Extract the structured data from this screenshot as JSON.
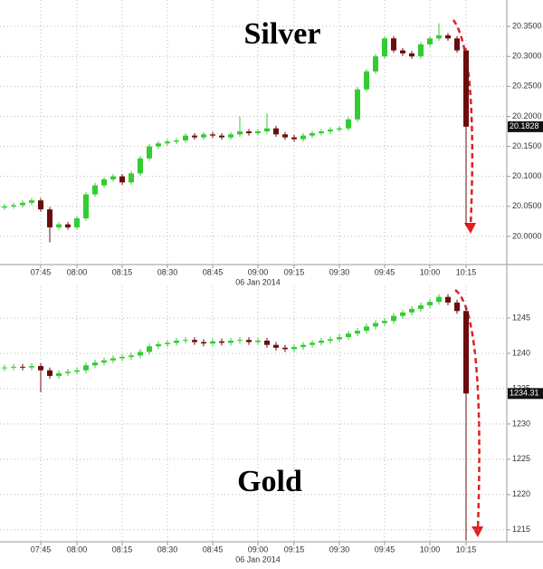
{
  "chart_data": [
    {
      "type": "candlestick",
      "title": "Silver",
      "xlabel": "06 Jan 2014",
      "categories": [
        null,
        null,
        null,
        null,
        "07:45",
        null,
        null,
        null,
        "08:00",
        null,
        null,
        null,
        null,
        "08:15",
        null,
        null,
        null,
        null,
        "08:30",
        null,
        null,
        null,
        null,
        "08:45",
        null,
        null,
        null,
        null,
        "09:00",
        null,
        null,
        null,
        "09:15",
        null,
        null,
        null,
        null,
        "09:30",
        null,
        null,
        null,
        null,
        "09:45",
        null,
        null,
        null,
        null,
        "10:00",
        null,
        null,
        null,
        "10:15"
      ],
      "series": {
        "open": [
          20.048,
          20.05,
          20.052,
          20.056,
          20.06,
          20.045,
          20.015,
          20.02,
          20.015,
          20.03,
          20.07,
          20.085,
          20.095,
          20.1,
          20.09,
          20.105,
          20.13,
          20.15,
          20.155,
          20.158,
          20.16,
          20.168,
          20.165,
          20.17,
          20.168,
          20.165,
          20.17,
          20.175,
          20.172,
          20.175,
          20.18,
          20.17,
          20.165,
          20.162,
          20.168,
          20.172,
          20.175,
          20.178,
          20.18,
          20.195,
          20.245,
          20.275,
          20.3,
          20.33,
          20.31,
          20.305,
          20.3,
          20.32,
          20.33,
          20.335,
          20.33,
          20.31
        ],
        "high": [
          20.054,
          20.056,
          20.06,
          20.064,
          20.064,
          20.049,
          20.024,
          20.024,
          20.034,
          20.074,
          20.089,
          20.099,
          20.104,
          20.104,
          20.109,
          20.134,
          20.154,
          20.159,
          20.162,
          20.164,
          20.172,
          20.172,
          20.174,
          20.174,
          20.172,
          20.174,
          20.2,
          20.179,
          20.179,
          20.205,
          20.184,
          20.174,
          20.169,
          20.172,
          20.176,
          20.179,
          20.182,
          20.184,
          20.199,
          20.249,
          20.279,
          20.304,
          20.334,
          20.334,
          20.314,
          20.309,
          20.324,
          20.334,
          20.355,
          20.339,
          20.334,
          20.314
        ],
        "low": [
          20.044,
          20.046,
          20.048,
          20.052,
          20.041,
          19.99,
          20.011,
          20.011,
          20.011,
          20.026,
          20.066,
          20.081,
          20.091,
          20.086,
          20.086,
          20.101,
          20.126,
          20.146,
          20.151,
          20.154,
          20.156,
          20.161,
          20.161,
          20.164,
          20.161,
          20.161,
          20.166,
          20.168,
          20.168,
          20.171,
          20.166,
          20.161,
          20.158,
          20.158,
          20.164,
          20.168,
          20.171,
          20.174,
          20.176,
          20.191,
          20.241,
          20.271,
          20.296,
          20.306,
          20.301,
          20.296,
          20.296,
          20.316,
          20.326,
          20.326,
          20.306,
          20.017
        ],
        "close": [
          20.05,
          20.052,
          20.056,
          20.06,
          20.045,
          20.015,
          20.02,
          20.015,
          20.03,
          20.07,
          20.085,
          20.095,
          20.1,
          20.09,
          20.105,
          20.13,
          20.15,
          20.155,
          20.158,
          20.16,
          20.168,
          20.165,
          20.17,
          20.168,
          20.165,
          20.17,
          20.175,
          20.172,
          20.175,
          20.18,
          20.17,
          20.165,
          20.162,
          20.168,
          20.172,
          20.175,
          20.178,
          20.18,
          20.195,
          20.245,
          20.275,
          20.3,
          20.33,
          20.31,
          20.305,
          20.3,
          20.32,
          20.33,
          20.335,
          20.33,
          20.31,
          20.1828
        ]
      },
      "up_color": "#33cc33",
      "down_color": "#6b0d0d",
      "ylim": [
        19.953,
        20.394
      ],
      "yticks": [
        {
          "value": 20.0,
          "label": "20.0000"
        },
        {
          "value": 20.05,
          "label": "20.0500"
        },
        {
          "value": 20.1,
          "label": "20.1000"
        },
        {
          "value": 20.15,
          "label": "20.1500"
        },
        {
          "value": 20.2,
          "label": "20.2000"
        },
        {
          "value": 20.25,
          "label": "20.2500"
        },
        {
          "value": 20.3,
          "label": "20.3000"
        },
        {
          "value": 20.35,
          "label": "20.3500"
        }
      ],
      "grid": true
    },
    {
      "type": "candlestick",
      "title": "Gold",
      "xlabel": "06 Jan 2014",
      "categories": [
        null,
        null,
        null,
        null,
        "07:45",
        null,
        null,
        null,
        "08:00",
        null,
        null,
        null,
        null,
        "08:15",
        null,
        null,
        null,
        null,
        "08:30",
        null,
        null,
        null,
        null,
        "08:45",
        null,
        null,
        null,
        null,
        "09:00",
        null,
        null,
        null,
        "09:15",
        null,
        null,
        null,
        null,
        "09:30",
        null,
        null,
        null,
        null,
        "09:45",
        null,
        null,
        null,
        null,
        "10:00",
        null,
        null,
        null,
        "10:15"
      ],
      "series": {
        "open": [
          1237.9,
          1238.0,
          1238.1,
          1238.0,
          1238.2,
          1237.6,
          1236.8,
          1237.2,
          1237.4,
          1237.6,
          1238.3,
          1238.7,
          1239.0,
          1239.3,
          1239.5,
          1239.7,
          1240.2,
          1241.0,
          1241.3,
          1241.5,
          1241.8,
          1241.9,
          1241.6,
          1241.4,
          1241.7,
          1241.5,
          1241.8,
          1241.9,
          1241.6,
          1241.8,
          1241.2,
          1240.8,
          1240.6,
          1240.9,
          1241.2,
          1241.5,
          1241.8,
          1242.0,
          1242.3,
          1242.8,
          1243.2,
          1243.8,
          1244.3,
          1244.6,
          1245.3,
          1245.8,
          1246.3,
          1246.8,
          1247.3,
          1248.0,
          1247.2,
          1246.0
        ],
        "high": [
          1238.4,
          1238.5,
          1238.5,
          1238.6,
          1238.6,
          1238.0,
          1237.6,
          1237.8,
          1238.0,
          1238.7,
          1239.1,
          1239.4,
          1239.7,
          1239.9,
          1240.1,
          1240.6,
          1241.4,
          1241.7,
          1241.9,
          1242.2,
          1242.3,
          1242.3,
          1242.0,
          1242.1,
          1242.1,
          1242.2,
          1242.3,
          1242.3,
          1242.2,
          1242.2,
          1241.6,
          1241.2,
          1241.3,
          1241.6,
          1241.9,
          1242.2,
          1242.4,
          1242.7,
          1243.2,
          1243.6,
          1244.2,
          1244.7,
          1245.0,
          1245.7,
          1246.2,
          1246.7,
          1247.2,
          1247.7,
          1248.4,
          1248.4,
          1247.6,
          1246.4
        ],
        "low": [
          1237.5,
          1237.6,
          1237.6,
          1237.6,
          1234.5,
          1236.4,
          1236.4,
          1236.8,
          1237.0,
          1237.2,
          1237.9,
          1238.3,
          1238.6,
          1238.9,
          1239.1,
          1239.3,
          1239.8,
          1240.6,
          1240.9,
          1241.1,
          1241.4,
          1241.2,
          1241.0,
          1241.0,
          1241.1,
          1241.1,
          1241.4,
          1241.2,
          1241.2,
          1240.8,
          1240.4,
          1240.2,
          1240.2,
          1240.5,
          1240.8,
          1241.1,
          1241.4,
          1241.6,
          1241.9,
          1242.4,
          1242.8,
          1243.4,
          1243.9,
          1244.2,
          1244.9,
          1245.4,
          1245.9,
          1246.4,
          1246.9,
          1246.8,
          1245.6,
          1213.5
        ],
        "close": [
          1238.0,
          1238.1,
          1238.0,
          1238.2,
          1237.6,
          1236.8,
          1237.2,
          1237.4,
          1237.6,
          1238.3,
          1238.7,
          1239.0,
          1239.3,
          1239.5,
          1239.7,
          1240.2,
          1241.0,
          1241.3,
          1241.5,
          1241.8,
          1241.9,
          1241.6,
          1241.4,
          1241.7,
          1241.5,
          1241.8,
          1241.9,
          1241.6,
          1241.8,
          1241.2,
          1240.8,
          1240.6,
          1240.9,
          1241.2,
          1241.5,
          1241.8,
          1242.0,
          1242.3,
          1242.8,
          1243.2,
          1243.8,
          1244.3,
          1244.6,
          1245.3,
          1245.8,
          1246.3,
          1246.8,
          1247.3,
          1248.0,
          1247.2,
          1246.0,
          1234.31
        ]
      },
      "up_color": "#33cc33",
      "down_color": "#6b0d0d",
      "ylim": [
        1213.3,
        1249.5
      ],
      "yticks": [
        1215,
        1220,
        1225,
        1230,
        1235,
        1240,
        1245
      ],
      "grid": true
    }
  ]
}
